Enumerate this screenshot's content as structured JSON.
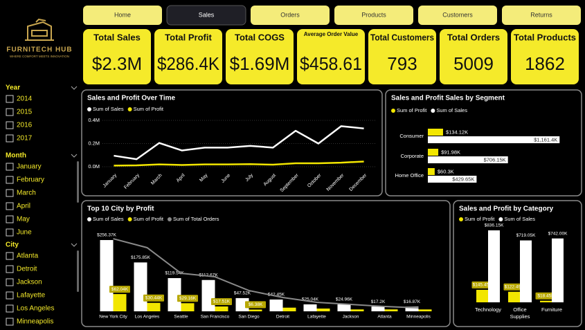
{
  "brand": {
    "name": "FURNITECH HUB",
    "tagline": "WHERE COMFORT MEETS INNOVATION"
  },
  "nav": {
    "items": [
      "Home",
      "Sales",
      "Orders",
      "Products",
      "Customers",
      "Returns"
    ],
    "selected": 1
  },
  "kpis": [
    {
      "label": "Total Sales",
      "value": "$2.3M"
    },
    {
      "label": "Total Profit",
      "value": "$286.4K"
    },
    {
      "label": "Total COGS",
      "value": "$1.69M"
    },
    {
      "label": "Average Order Value",
      "value": "$458.61"
    },
    {
      "label": "Total Customers",
      "value": "793"
    },
    {
      "label": "Total Orders",
      "value": "5009"
    },
    {
      "label": "Total Products",
      "value": "1862"
    }
  ],
  "slicers": [
    {
      "title": "Year",
      "items": [
        "2014",
        "2015",
        "2016",
        "2017"
      ]
    },
    {
      "title": "Month",
      "items": [
        "January",
        "February",
        "March",
        "April",
        "May",
        "June"
      ]
    },
    {
      "title": "City",
      "items": [
        "Atlanta",
        "Detroit",
        "Jackson",
        "Lafayette",
        "Los Angeles",
        "Minneapolis"
      ]
    }
  ],
  "chart_data": [
    {
      "type": "line",
      "title": "Sales and Profit Over Time",
      "categories": [
        "January",
        "February",
        "March",
        "April",
        "May",
        "June",
        "July",
        "August",
        "September",
        "October",
        "November",
        "December"
      ],
      "series": [
        {
          "name": "Sum of Sales",
          "color": "#ffffff",
          "values": [
            95000,
            65000,
            205000,
            140000,
            165000,
            165000,
            180000,
            165000,
            310000,
            200000,
            350000,
            330000
          ]
        },
        {
          "name": "Sum of Profit",
          "color": "#f2e600",
          "values": [
            10000,
            12000,
            20000,
            15000,
            20000,
            20000,
            22000,
            18000,
            30000,
            30000,
            35000,
            45000
          ]
        }
      ],
      "ylim": [
        -20000,
        420000
      ],
      "yticks": [
        {
          "value": 0,
          "label": "0.0M"
        },
        {
          "value": 200000,
          "label": "0.2M"
        },
        {
          "value": 400000,
          "label": "0.4M"
        }
      ],
      "grid": true
    },
    {
      "type": "bar",
      "orientation": "horizontal",
      "title": "Sales and Profit Sales by Segment",
      "categories": [
        "Consumer",
        "Corporate",
        "Home Office"
      ],
      "series": [
        {
          "name": "Sum of Profit",
          "color": "#f2e600",
          "values": [
            134120,
            91980,
            60300
          ],
          "value_labels": [
            "$134.12K",
            "$91.98K",
            "$60.3K"
          ]
        },
        {
          "name": "Sum of Sales",
          "color": "#ffffff",
          "values": [
            1161400,
            706150,
            429650
          ],
          "value_labels": [
            "$1,161.4K",
            "$706.15K",
            "$429.65K"
          ]
        }
      ],
      "xlim": [
        0,
        1300000
      ]
    },
    {
      "type": "bar",
      "title": "Top 10 City by Profit",
      "categories": [
        "New York City",
        "Los Angeles",
        "Seattle",
        "San Francisco",
        "San Diego",
        "Detroit",
        "Lafayette",
        "Jackson",
        "Atlanta",
        "Minneapolis"
      ],
      "series": [
        {
          "name": "Sum of Sales",
          "color": "#ffffff",
          "values": [
            256370,
            175850,
            119540,
            112670,
            47520,
            42450,
            25040,
            24960,
            17200,
            16870
          ],
          "value_labels": [
            "$256.37K",
            "$175.85K",
            "$119.54K",
            "$112.67K",
            "$47.52K",
            "$42.45K",
            "$25.04K",
            "$24.96K",
            "$17.2K",
            "$16.87K"
          ]
        },
        {
          "name": "Sum of Profit",
          "color": "#f2e600",
          "values": [
            62040,
            30440,
            29160,
            17510,
            6380,
            13180,
            10020,
            6860,
            6990,
            6820
          ],
          "value_labels": [
            "$62.04K",
            "$30.44K",
            "$29.16K",
            "$17.51K",
            "$6.38K",
            null,
            null,
            null,
            null,
            null
          ]
        },
        {
          "name": "Sum of Total Orders",
          "color": "#8a8a8a",
          "type": "line",
          "axis": "y2",
          "values": [
            933,
            818,
            489,
            444,
            267,
            178,
            116,
            89,
            62,
            44
          ]
        }
      ],
      "ylim": [
        0,
        280000
      ],
      "y2lim": [
        0,
        1000
      ]
    },
    {
      "type": "bar",
      "title": "Sales and Profit by Category",
      "categories": [
        "Technology",
        "Office Supplies",
        "Furniture"
      ],
      "series": [
        {
          "name": "Sum of Profit",
          "color": "#f2e600",
          "values": [
            145450,
            122490,
            18450
          ],
          "value_labels": [
            "$145.45K",
            "$122.49K",
            "$18.45K"
          ]
        },
        {
          "name": "Sum of Sales",
          "color": "#ffffff",
          "values": [
            836150,
            719050,
            742000
          ],
          "value_labels": [
            "$836.15K",
            "$719.05K",
            "$742.00K"
          ]
        }
      ],
      "ylim": [
        0,
        900000
      ]
    }
  ]
}
